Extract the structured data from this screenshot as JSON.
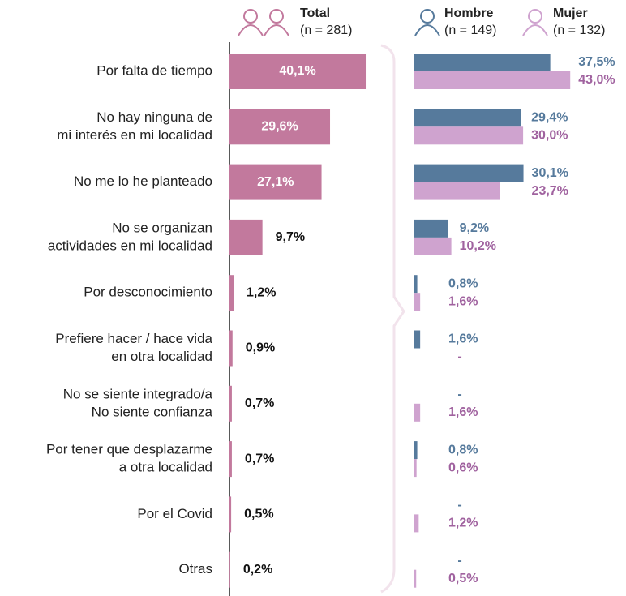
{
  "chart_data": {
    "type": "bar",
    "categories": [
      [
        "Por falta de tiempo"
      ],
      [
        "No hay ninguna de",
        "mi interés en mi localidad"
      ],
      [
        "No me lo he planteado"
      ],
      [
        "No se organizan",
        "actividades en mi localidad"
      ],
      [
        "Por desconocimiento"
      ],
      [
        "Prefiere hacer / hace vida",
        "en otra localidad"
      ],
      [
        "No se siente integrado/a",
        "No siente confianza"
      ],
      [
        "Por tener que desplazarme",
        "a otra localidad"
      ],
      [
        "Por el Covid"
      ],
      [
        "Otras"
      ]
    ],
    "total": {
      "name": "Total",
      "n": "(n = 281)",
      "color": "#c2799d",
      "values": [
        40.1,
        29.6,
        27.1,
        9.7,
        1.2,
        0.9,
        0.7,
        0.7,
        0.5,
        0.2
      ],
      "value_labels": [
        "40,1%",
        "29,6%",
        "27,1%",
        "9,7%",
        "1,2%",
        "0,9%",
        "0,7%",
        "0,7%",
        "0,5%",
        "0,2%"
      ]
    },
    "series": [
      {
        "name": "Hombre",
        "n": "(n = 149)",
        "color": "#567a9c",
        "label_color": "#567a9c",
        "values": [
          37.5,
          29.4,
          30.1,
          9.2,
          0.8,
          1.6,
          null,
          0.8,
          null,
          null
        ],
        "value_labels": [
          "37,5%",
          "29,4%",
          "30,1%",
          "9,2%",
          "0,8%",
          "1,6%",
          "-",
          "0,8%",
          "-",
          "-"
        ]
      },
      {
        "name": "Mujer",
        "n": "(n = 132)",
        "color": "#cfa3cf",
        "label_color": "#a0629f",
        "values": [
          43.0,
          30.0,
          23.7,
          10.2,
          1.6,
          null,
          1.6,
          0.6,
          1.2,
          0.5
        ],
        "value_labels": [
          "43,0%",
          "30,0%",
          "23,7%",
          "10,2%",
          "1,6%",
          "-",
          "1,6%",
          "0,6%",
          "1,2%",
          "0,5%"
        ]
      }
    ]
  }
}
